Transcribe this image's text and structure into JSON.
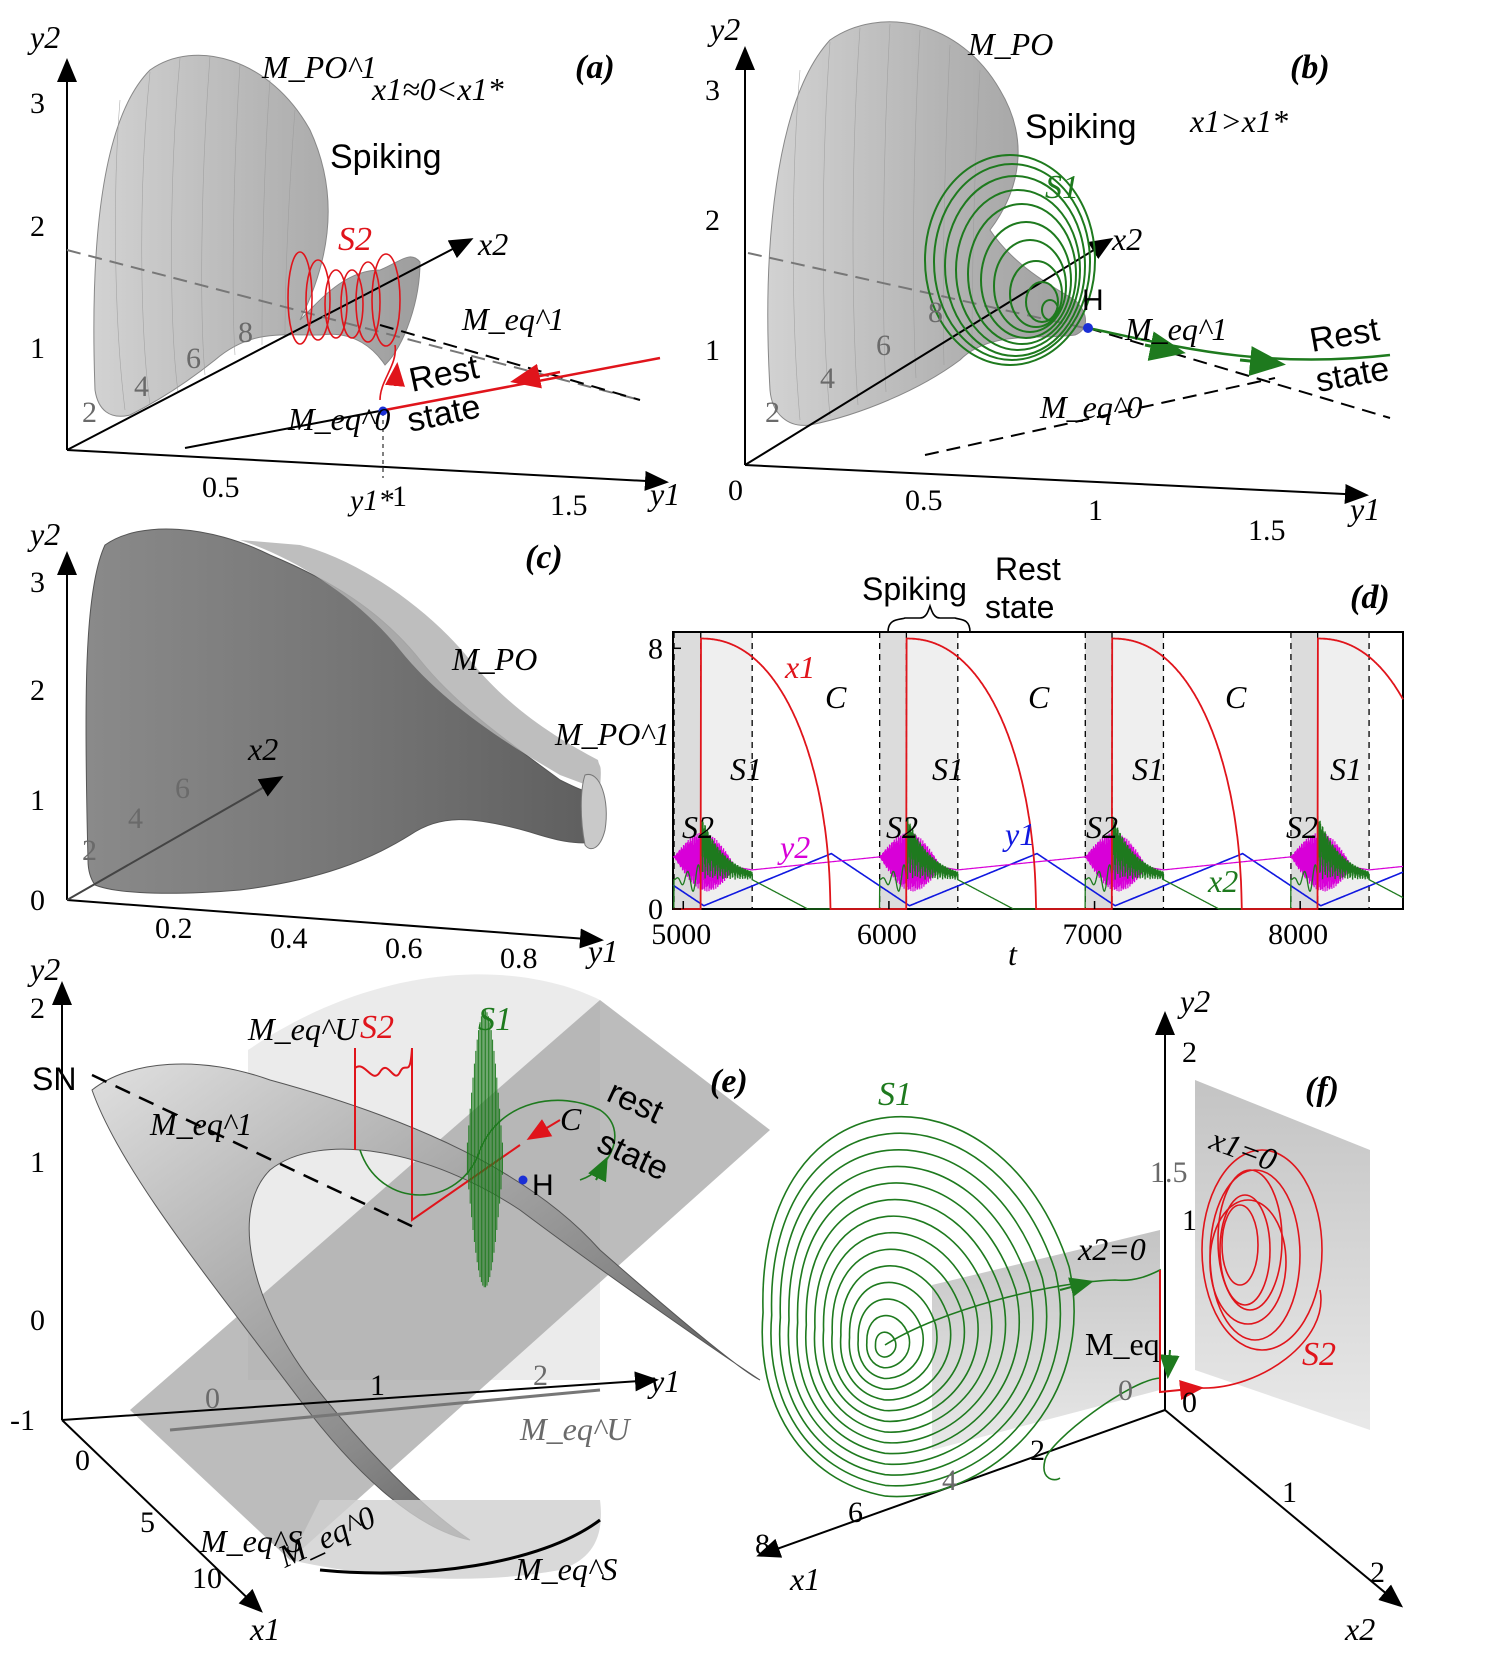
{
  "colors": {
    "surface_light": "#c8c8c8",
    "surface_mid": "#a9a9a9",
    "surface_dark": "#7a7a7a",
    "x1": "#e0141b",
    "x2": "#1e7a1e",
    "y1": "#1018e0",
    "y2": "#d800d8",
    "equilibrium_dot": "#1a2fd6"
  },
  "panel_a": {
    "tag": "(a)",
    "axis_y2": "y2",
    "axis_y1": "y1",
    "axis_x2": "x2",
    "y2_ticks": [
      "1",
      "2",
      "3"
    ],
    "x2_ticks": [
      "2",
      "4",
      "6",
      "8"
    ],
    "y1_ticks": [
      "0.5",
      "1",
      "1.5"
    ],
    "y1_star": "y1*",
    "manifold_po": "M_PO^1",
    "condition": "x1≈0<x1*",
    "spiking": "Spiking",
    "orbit": "S2",
    "manifold_eq1": "M_eq^1",
    "manifold_eq0": "M_eq^0",
    "rest_1": "Rest",
    "rest_2": "state"
  },
  "panel_b": {
    "tag": "(b)",
    "axis_y2": "y2",
    "axis_y1": "y1",
    "axis_x2": "x2",
    "y2_ticks": [
      "1",
      "2",
      "3"
    ],
    "x2_ticks": [
      "2",
      "4",
      "6",
      "8"
    ],
    "y1_ticks": [
      "0",
      "0.5",
      "1",
      "1.5"
    ],
    "manifold_po": "M_PO",
    "condition": "x1>x1*",
    "spiking": "Spiking",
    "orbit": "S1",
    "hopf": "H",
    "manifold_eq1": "M_eq^1",
    "manifold_eq0": "M_eq^0",
    "rest_1": "Rest",
    "rest_2": "state"
  },
  "panel_c": {
    "tag": "(c)",
    "axis_y2": "y2",
    "axis_y1": "y1",
    "axis_x2": "x2",
    "y2_ticks": [
      "0",
      "1",
      "2",
      "3"
    ],
    "x2_ticks": [
      "2",
      "4",
      "6"
    ],
    "y1_ticks": [
      "0.2",
      "0.4",
      "0.6",
      "0.8"
    ],
    "manifold_po": "M_PO",
    "manifold_po1": "M_PO^1"
  },
  "panel_d": {
    "tag": "(d)",
    "spiking": "Spiking",
    "rest_1": "Rest",
    "rest_2": "state",
    "x_label": "t",
    "y_ticks": [
      "0",
      "8"
    ],
    "x_ticks": [
      "5000",
      "6000",
      "7000",
      "8000"
    ],
    "segment_labels": {
      "S1": "S1",
      "S2": "S2",
      "C": "C"
    },
    "series_labels": {
      "x1": "x1",
      "x2": "x2",
      "y1": "y1",
      "y2": "y2"
    }
  },
  "panel_e": {
    "tag": "(e)",
    "axis_y2": "y2",
    "axis_y1": "y1",
    "axis_x1": "x1",
    "y2_ticks": [
      "-1",
      "0",
      "1",
      "2"
    ],
    "y1_ticks": [
      "0",
      "1",
      "2"
    ],
    "x1_ticks": [
      "0",
      "5",
      "10"
    ],
    "sn": "SN",
    "m_eq_u": "M_eq^U",
    "m_eq_1": "M_eq^1",
    "m_eq_0": "M_eq^0",
    "m_eq_s": "M_eq^S",
    "orbit_s2": "S2",
    "orbit_s1": "S1",
    "c": "C",
    "hopf": "H",
    "rest_1": "rest",
    "rest_2": "state"
  },
  "panel_f": {
    "tag": "(f)",
    "axis_y2": "y2",
    "axis_x1": "x1",
    "axis_x2": "x2",
    "y2_ticks": [
      "0",
      "1",
      "1.5",
      "2"
    ],
    "x1_ticks": [
      "0",
      "2",
      "4",
      "6",
      "8"
    ],
    "x2_ticks": [
      "1",
      "2"
    ],
    "plane_x2": "x2=0",
    "plane_x1": "x1=0",
    "m_eq": "M_eq",
    "orbit_s1": "S1",
    "orbit_s2": "S2"
  },
  "chart_data": [
    {
      "type": "line",
      "panel": "(d)",
      "xlabel": "t",
      "ylabel": "",
      "xlim": [
        4950,
        8500
      ],
      "ylim": [
        0,
        8.5
      ],
      "x_ticks": [
        5000,
        6000,
        7000,
        8000
      ],
      "y_ticks": [
        0,
        8
      ],
      "burst_period": 1000,
      "phases": {
        "S2_start": [
          4955,
          5955,
          6955,
          7955
        ],
        "S1_start": [
          5085,
          6085,
          7085,
          8085
        ],
        "C_start": [
          5335,
          6335,
          7335,
          8335
        ]
      },
      "series": [
        {
          "name": "x1",
          "color": "#e0141b",
          "peak": 8.3,
          "jump_t": [
            5085,
            6085,
            7085,
            8085
          ],
          "drop_t": [
            5715,
            6715,
            7715
          ]
        },
        {
          "name": "x2",
          "color": "#1e7a1e",
          "peak_oscillation": 2.9
        },
        {
          "name": "y1",
          "color": "#1018e0",
          "min": 0.1,
          "max": 1.7
        },
        {
          "name": "y2",
          "color": "#d800d8",
          "min": 1.2,
          "max": 1.6
        }
      ]
    }
  ]
}
